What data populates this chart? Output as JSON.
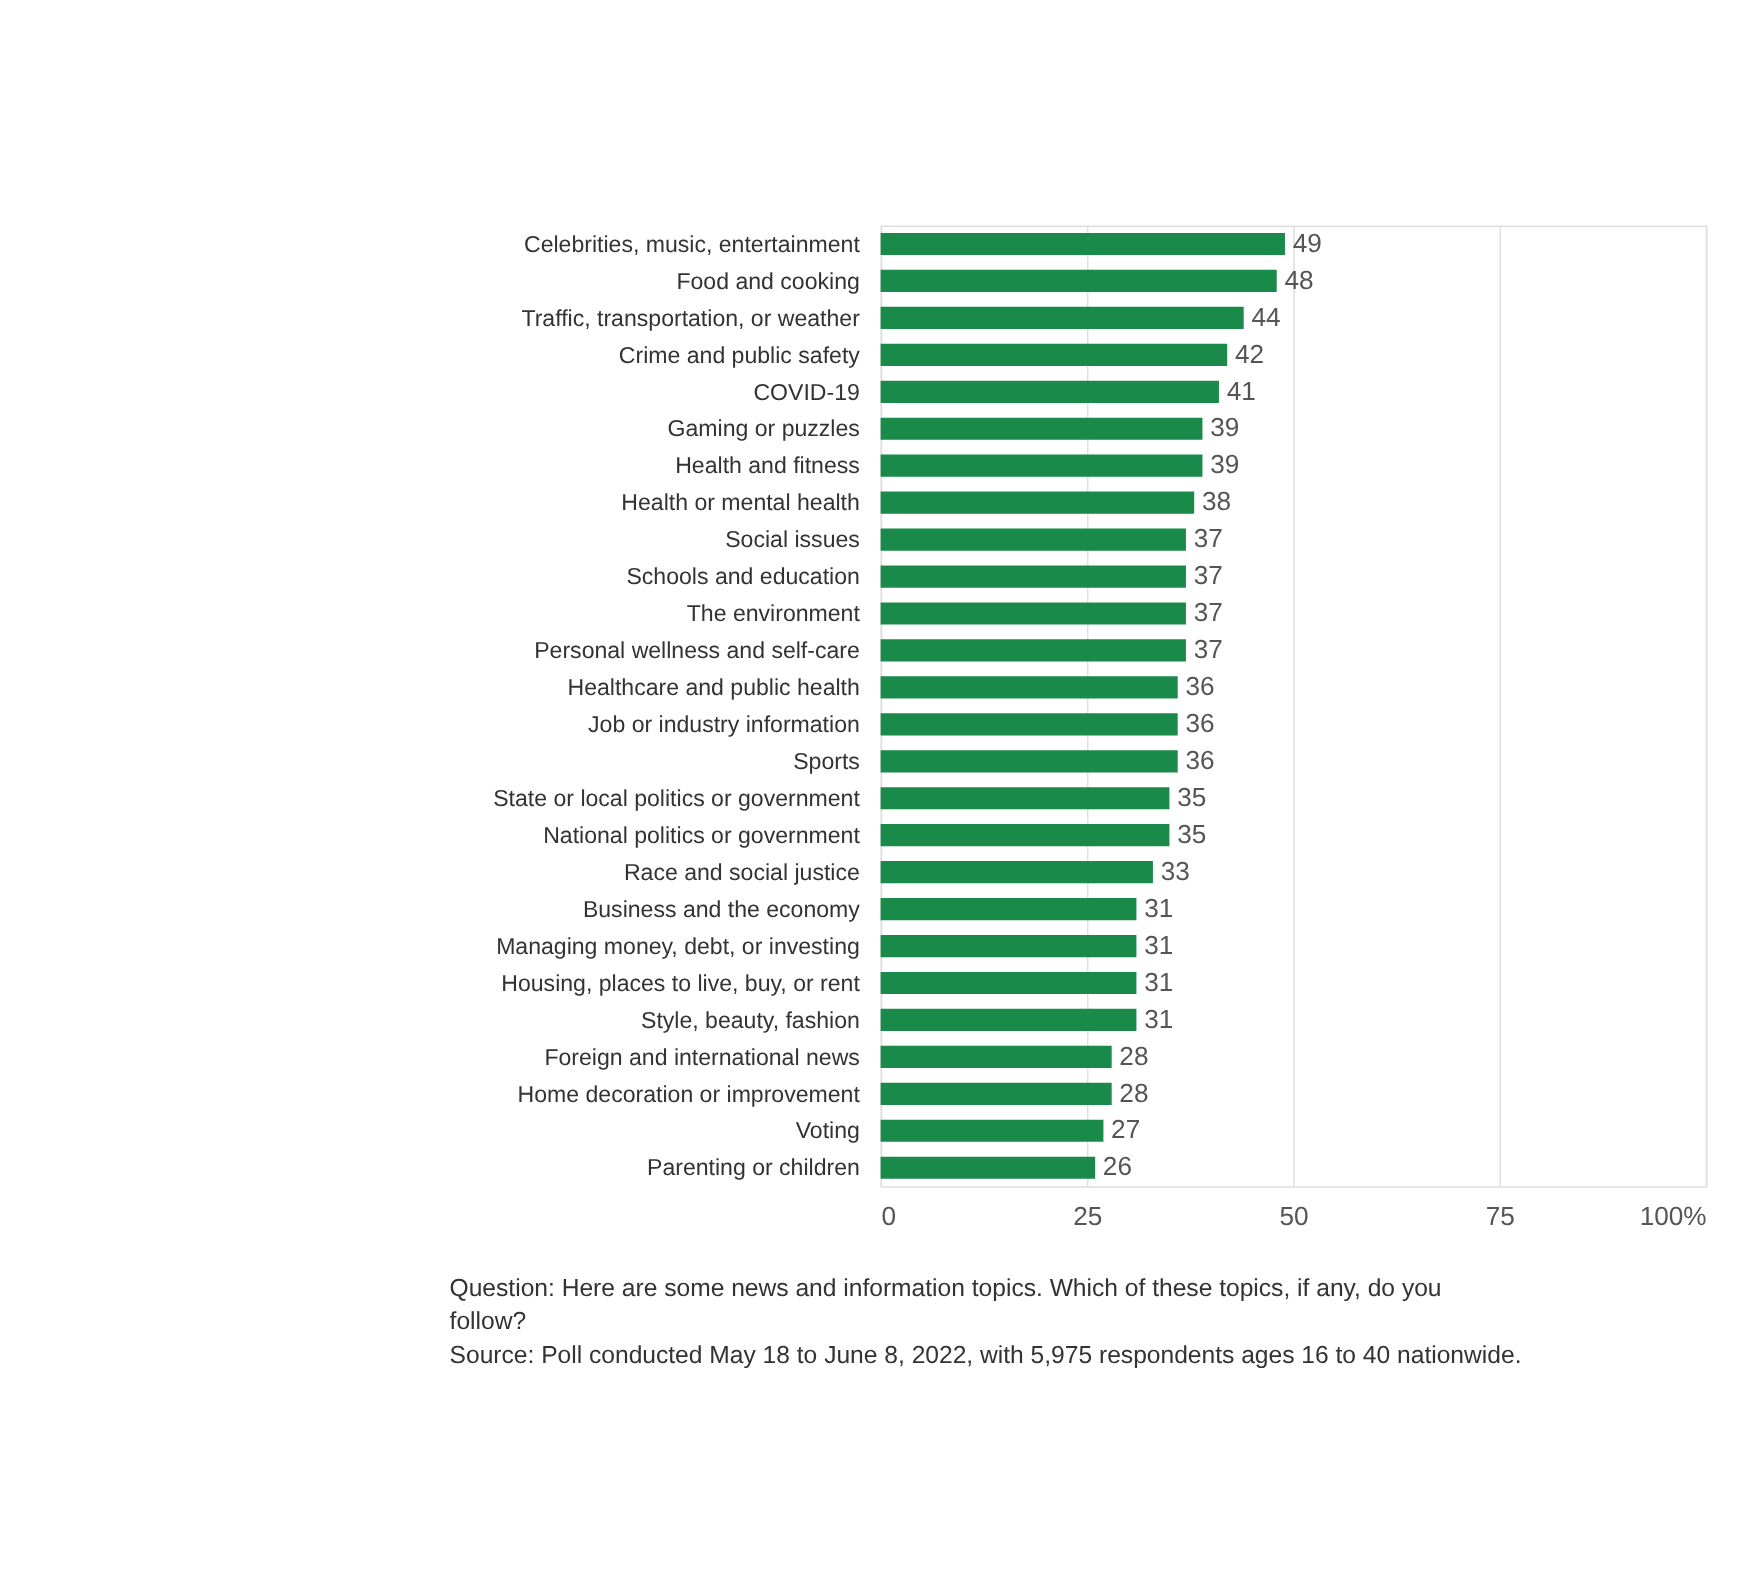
{
  "chart_data": {
    "type": "bar",
    "orientation": "horizontal",
    "categories": [
      "Celebrities, music, entertainment",
      "Food and cooking",
      "Traffic, transportation, or weather",
      "Crime and public safety",
      "COVID-19",
      "Gaming or puzzles",
      "Health and fitness",
      "Health or mental health",
      "Social issues",
      "Schools and education",
      "The environment",
      "Personal wellness and self-care",
      "Healthcare and public health",
      "Job or industry information",
      "Sports",
      "State or local politics or government",
      "National politics or government",
      "Race and social justice",
      "Business and the economy",
      "Managing money, debt, or investing",
      "Housing, places to live, buy, or rent",
      "Style, beauty, fashion",
      "Foreign and international news",
      "Home decoration or improvement",
      "Voting",
      "Parenting or children"
    ],
    "values": [
      49,
      48,
      44,
      42,
      41,
      39,
      39,
      38,
      37,
      37,
      37,
      37,
      36,
      36,
      36,
      35,
      35,
      33,
      31,
      31,
      31,
      31,
      28,
      28,
      27,
      26
    ],
    "color": "#1a8a4a",
    "xlim": [
      0,
      100
    ],
    "xticks": [
      0,
      25,
      50,
      75,
      {
        "value": 100,
        "label": "100%"
      }
    ],
    "grid": "x",
    "data_labels": true,
    "annotations": [
      "Question: Here are some news and information topics. Which of these topics, if any, do you follow?",
      "Source: Poll conducted May 18 to June 8, 2022, with 5,975 respondents ages 16 to 40 nationwide."
    ]
  }
}
